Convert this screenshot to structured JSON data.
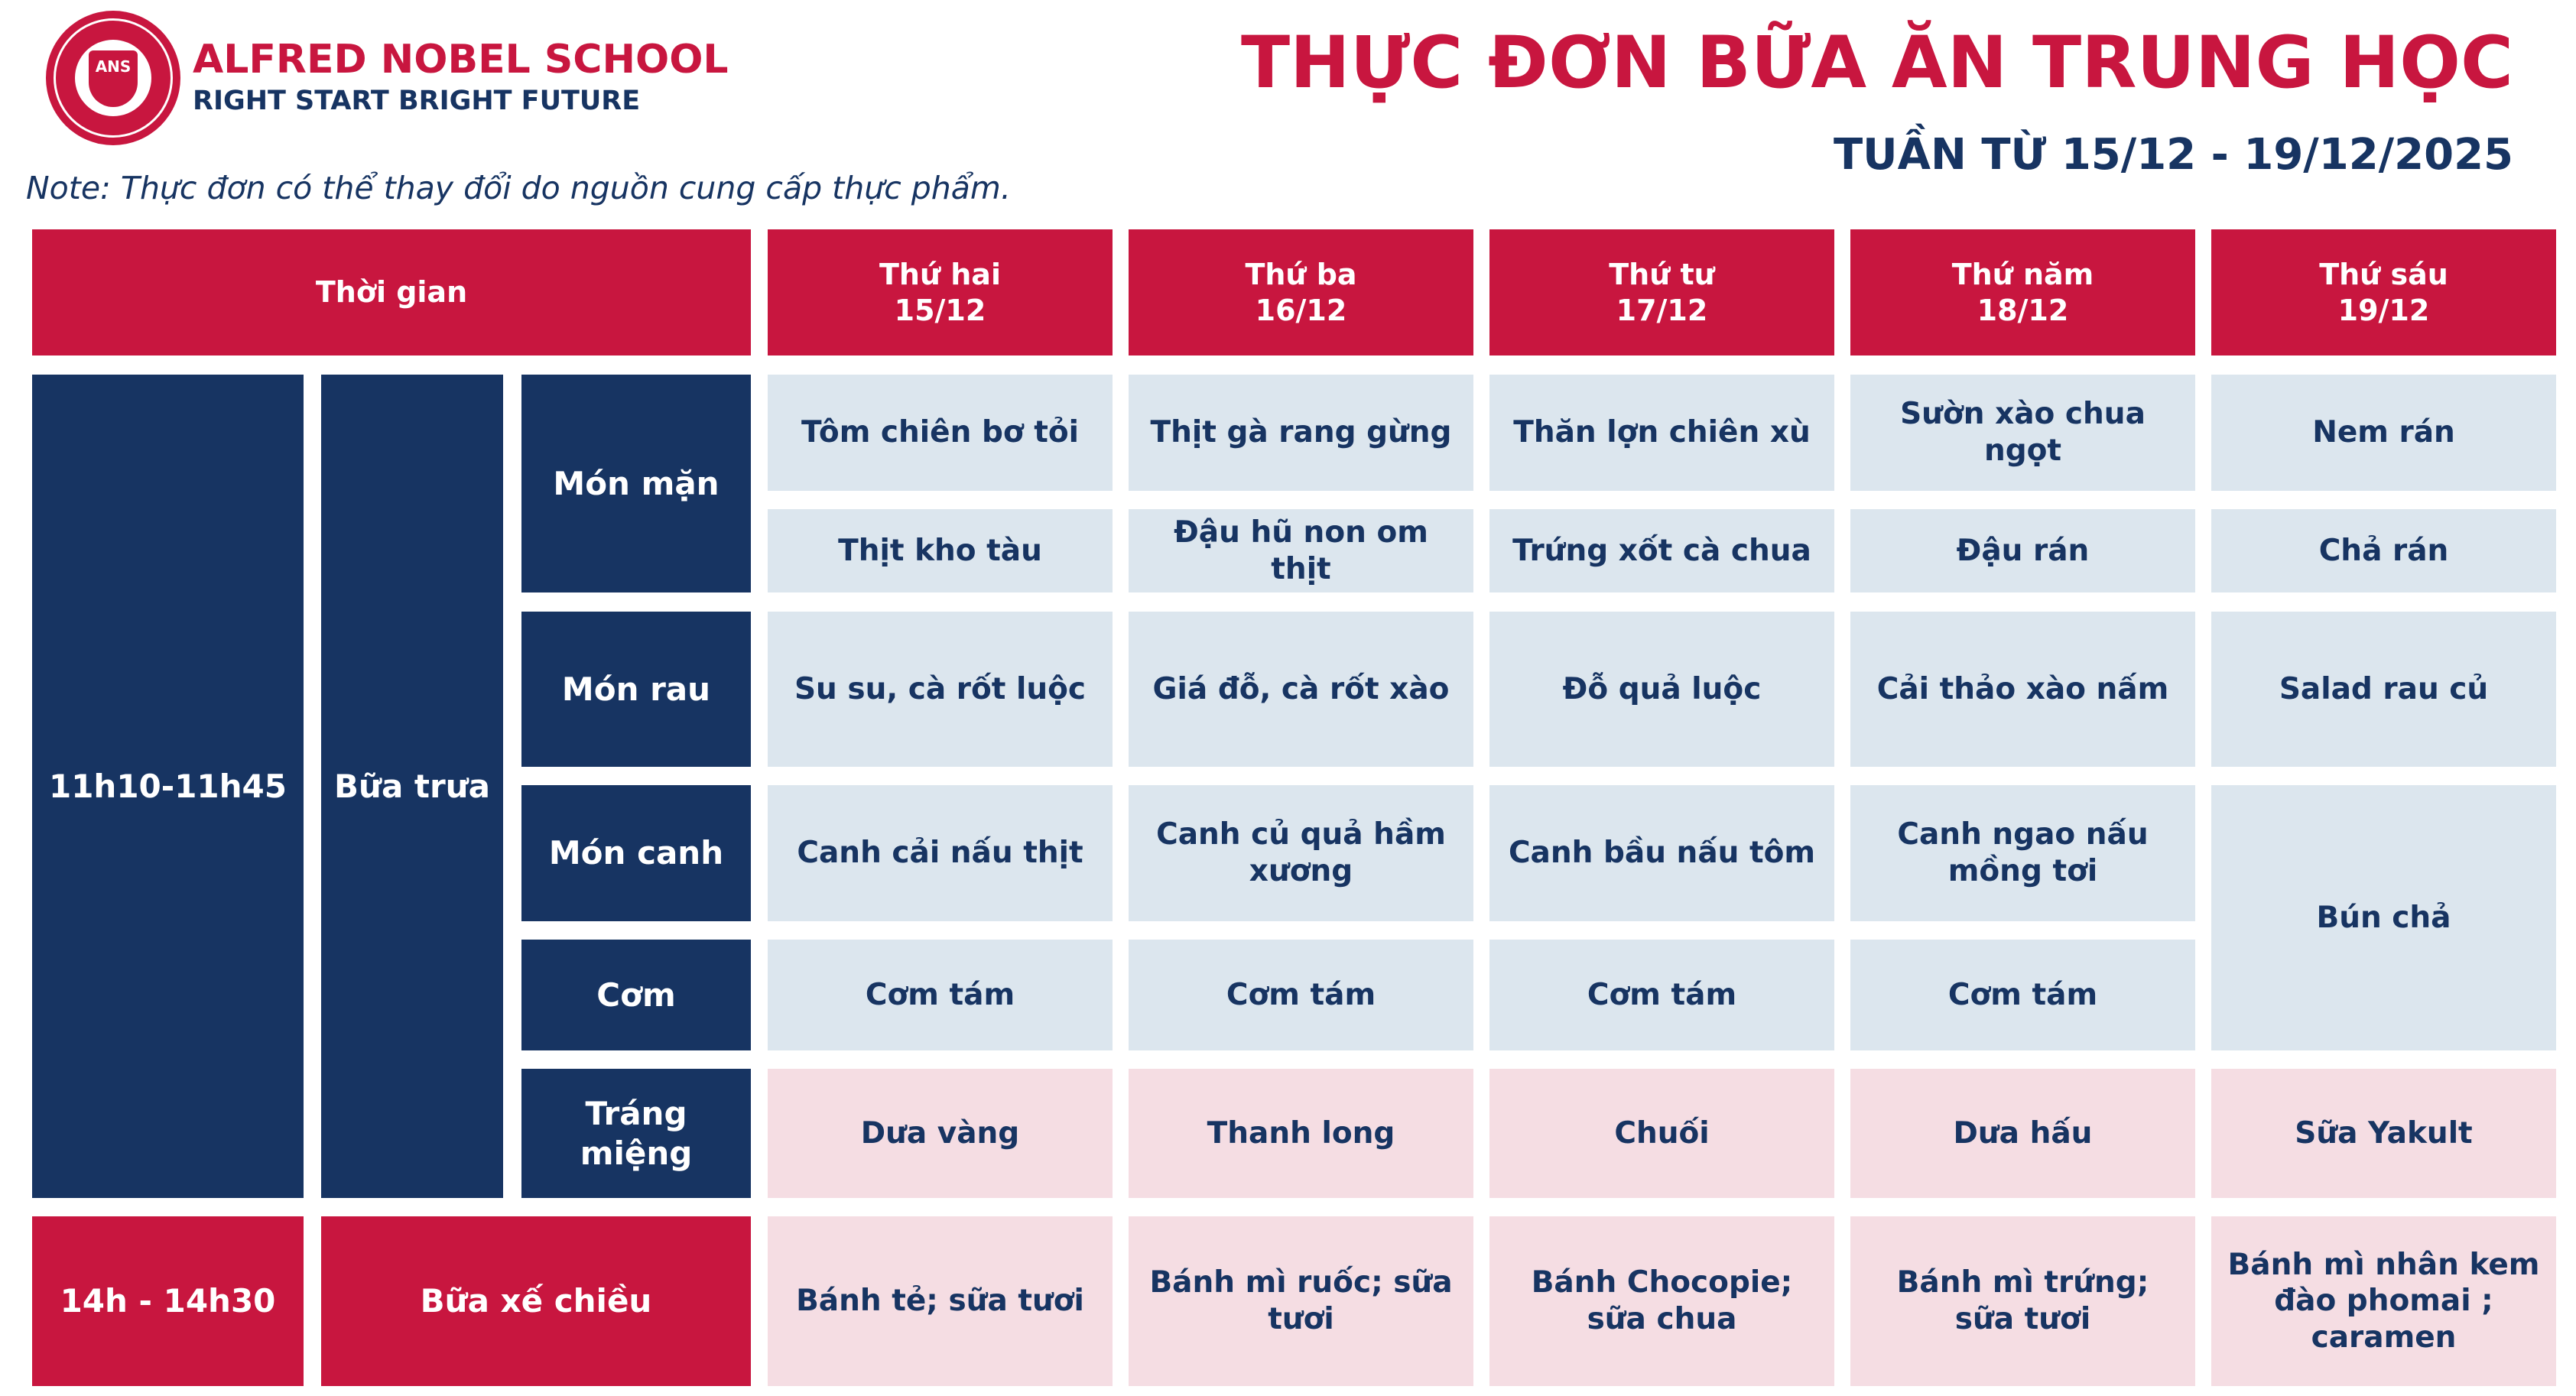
{
  "header": {
    "school_name": "ALFRED NOBEL SCHOOL",
    "slogan": "RIGHT START  BRIGHT FUTURE",
    "logo_text": "ANS",
    "title": "THỰC ĐƠN BỮA ĂN TRUNG HỌC",
    "week": "TUẦN TỪ 15/12 - 19/12/2025",
    "note": "Note: Thực đơn có thể thay đổi do nguồn cung cấp thực phẩm."
  },
  "colors": {
    "red": "#c8163f",
    "navy": "#173462",
    "light_blue": "#dce6ee",
    "light_pink": "#f5dde3"
  },
  "table": {
    "time_header": "Thời gian",
    "days": [
      {
        "name": "Thứ hai",
        "date": "15/12"
      },
      {
        "name": "Thứ ba",
        "date": "16/12"
      },
      {
        "name": "Thứ tư",
        "date": "17/12"
      },
      {
        "name": "Thứ năm",
        "date": "18/12"
      },
      {
        "name": "Thứ sáu",
        "date": "19/12"
      }
    ],
    "lunch": {
      "time": "11h10-11h45",
      "meal": "Bữa trưa",
      "categories": {
        "main": "Món mặn",
        "veg": "Món rau",
        "soup": "Món canh",
        "rice": "Cơm",
        "dessert": "Tráng miệng"
      },
      "main_1": [
        "Tôm chiên bơ tỏi",
        "Thịt gà rang gừng",
        "Thăn lợn chiên xù",
        "Sườn xào chua ngọt",
        "Nem rán"
      ],
      "main_2": [
        "Thịt kho tàu",
        "Đậu hũ non om thịt",
        "Trứng xốt cà chua",
        "Đậu rán",
        "Chả rán"
      ],
      "veg": [
        "Su su, cà rốt luộc",
        "Giá đỗ, cà rốt xào",
        "Đỗ quả luộc",
        "Cải thảo xào nấm",
        "Salad rau củ"
      ],
      "soup": [
        "Canh cải nấu thịt",
        "Canh củ quả hầm xương",
        "Canh bầu nấu tôm",
        "Canh ngao nấu mồng tơi"
      ],
      "rice": [
        "Cơm tám",
        "Cơm tám",
        "Cơm tám",
        "Cơm tám"
      ],
      "friday_soup_rice": "Bún chả",
      "dessert": [
        "Dưa vàng",
        "Thanh long",
        "Chuối",
        "Dưa hấu",
        "Sữa Yakult"
      ]
    },
    "snack": {
      "time": "14h - 14h30",
      "meal": "Bữa xế chiều",
      "items": [
        "Bánh tẻ; sữa tươi",
        "Bánh mì ruốc; sữa tươi",
        "Bánh Chocopie; sữa chua",
        "Bánh mì trứng; sữa tươi",
        "Bánh mì nhân kem đào phomai ; caramen"
      ]
    }
  }
}
